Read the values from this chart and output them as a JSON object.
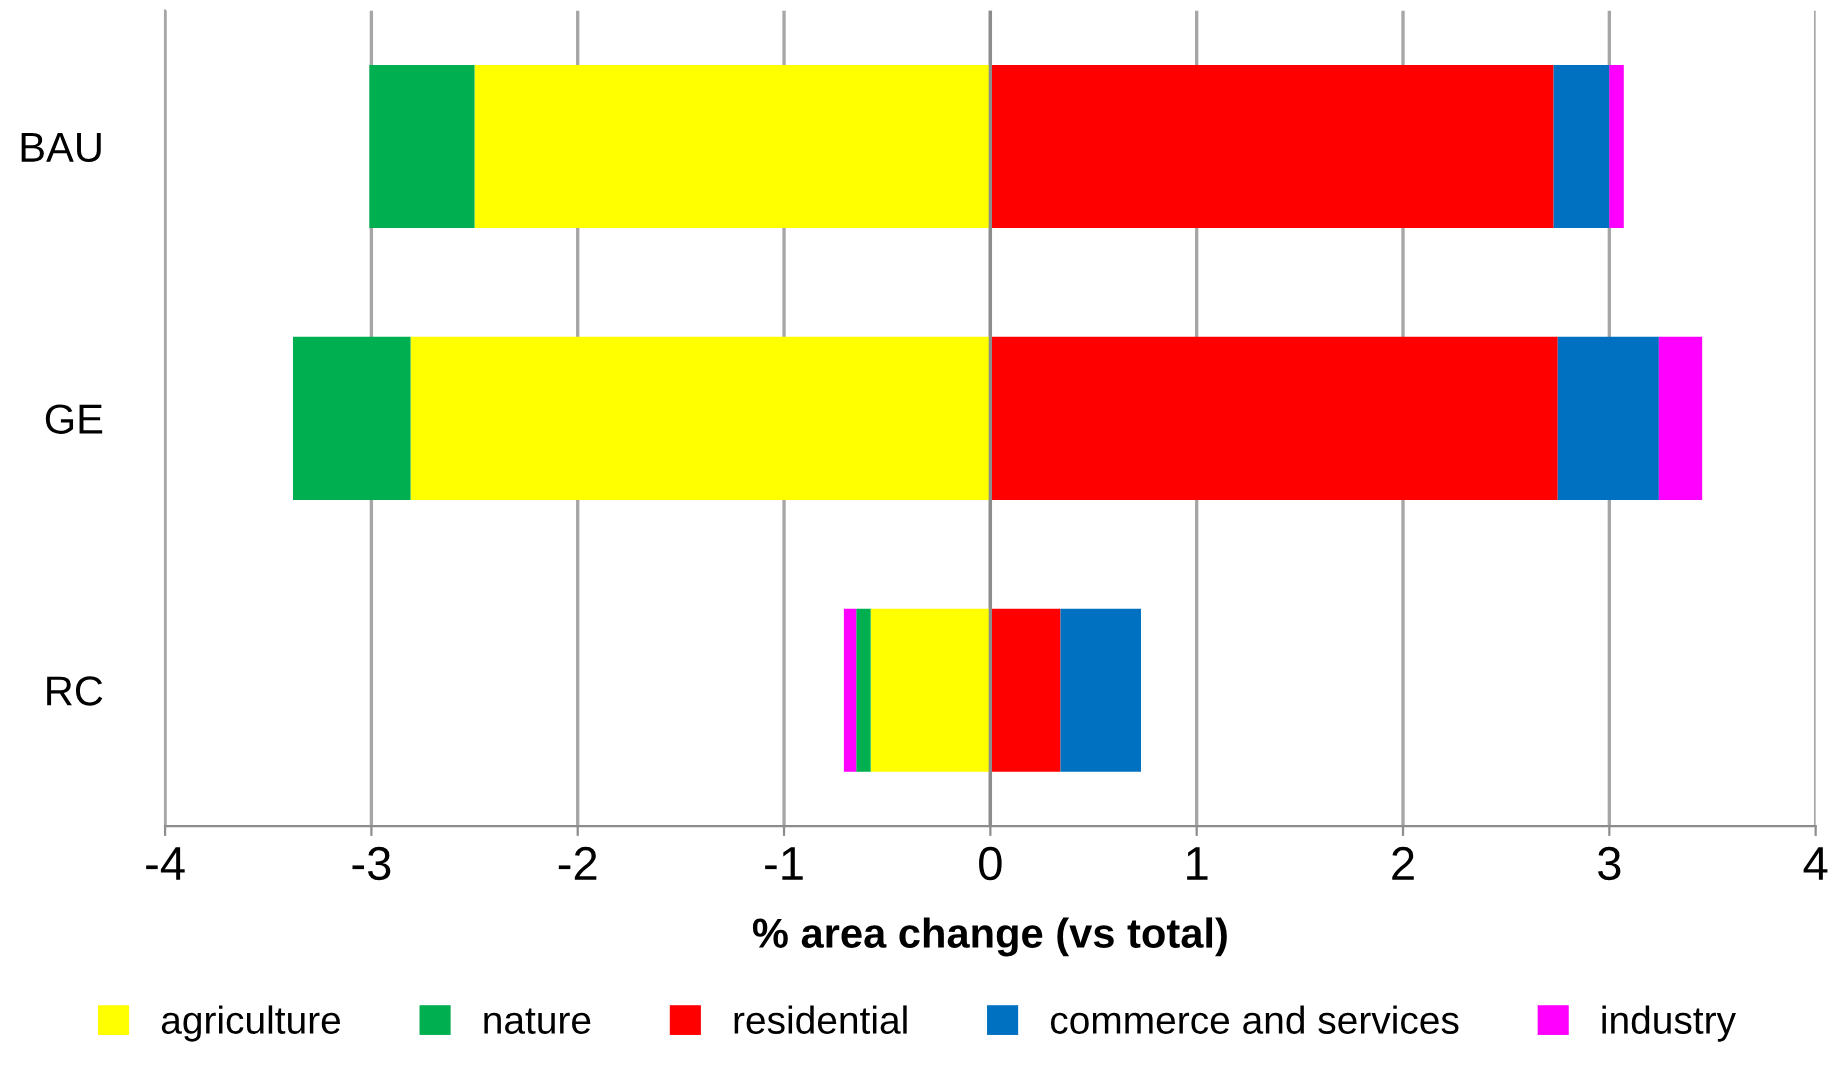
{
  "chart_data": {
    "type": "bar",
    "orientation": "horizontal",
    "stacked": true,
    "categories": [
      "BAU",
      "GE",
      "RC"
    ],
    "series": [
      {
        "name": "agriculture",
        "color": "#ffff00",
        "values": [
          -2.5,
          -2.81,
          -0.58
        ]
      },
      {
        "name": "nature",
        "color": "#00b050",
        "values": [
          -0.51,
          -0.57,
          -0.07
        ]
      },
      {
        "name": "residential",
        "color": "#ff0000",
        "values": [
          2.73,
          2.75,
          0.34
        ]
      },
      {
        "name": "commerce and services",
        "color": "#0070c0",
        "values": [
          0.27,
          0.49,
          0.39
        ]
      },
      {
        "name": "industry",
        "color": "#ff00ff",
        "values": [
          0.07,
          0.21,
          -0.06
        ]
      }
    ],
    "xlabel": "% area change (vs total)",
    "xlim": [
      -4,
      4
    ],
    "xticks": [
      -4,
      -3,
      -2,
      -1,
      0,
      1,
      2,
      3,
      4
    ],
    "grid": "x",
    "legend": "bottom"
  }
}
